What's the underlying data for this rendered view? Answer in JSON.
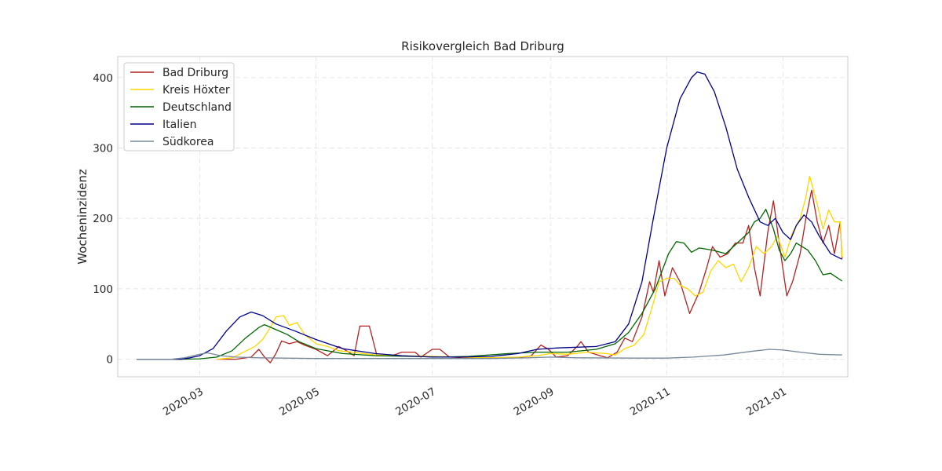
{
  "chart_data": {
    "type": "line",
    "title": "Risikovergleich Bad Driburg",
    "xlabel": "",
    "ylabel": "Wocheninzidenz",
    "x_axis": {
      "type": "date",
      "range": [
        "2020-01-18",
        "2021-02-04"
      ],
      "ticks": [
        "2020-03-01",
        "2020-05-01",
        "2020-07-01",
        "2020-09-01",
        "2020-11-01",
        "2021-01-01"
      ],
      "tick_labels": [
        "2020-03",
        "2020-05",
        "2020-07",
        "2020-09",
        "2020-11",
        "2021-01"
      ]
    },
    "y_axis": {
      "range": [
        -25,
        430
      ],
      "ticks": [
        0,
        100,
        200,
        300,
        400
      ],
      "tick_labels": [
        "0",
        "100",
        "200",
        "300",
        "400"
      ]
    },
    "grid": true,
    "legend_position": "top-left",
    "series": [
      {
        "name": "Bad Driburg",
        "color": "#b22222",
        "points": [
          [
            "2020-03-10",
            0
          ],
          [
            "2020-03-20",
            0
          ],
          [
            "2020-03-28",
            3
          ],
          [
            "2020-04-01",
            14
          ],
          [
            "2020-04-04",
            3
          ],
          [
            "2020-04-07",
            -5
          ],
          [
            "2020-04-10",
            8
          ],
          [
            "2020-04-13",
            26
          ],
          [
            "2020-04-17",
            22
          ],
          [
            "2020-04-21",
            25
          ],
          [
            "2020-04-25",
            20
          ],
          [
            "2020-05-01",
            14
          ],
          [
            "2020-05-07",
            5
          ],
          [
            "2020-05-13",
            18
          ],
          [
            "2020-05-17",
            12
          ],
          [
            "2020-05-21",
            5
          ],
          [
            "2020-05-24",
            47
          ],
          [
            "2020-05-29",
            47
          ],
          [
            "2020-06-02",
            5
          ],
          [
            "2020-06-10",
            5
          ],
          [
            "2020-06-15",
            10
          ],
          [
            "2020-06-22",
            10
          ],
          [
            "2020-06-25",
            3
          ],
          [
            "2020-07-01",
            14
          ],
          [
            "2020-07-05",
            14
          ],
          [
            "2020-07-10",
            3
          ],
          [
            "2020-07-20",
            2
          ],
          [
            "2020-08-01",
            2
          ],
          [
            "2020-08-15",
            2
          ],
          [
            "2020-08-22",
            5
          ],
          [
            "2020-08-27",
            20
          ],
          [
            "2020-08-31",
            14
          ],
          [
            "2020-09-04",
            3
          ],
          [
            "2020-09-10",
            5
          ],
          [
            "2020-09-15",
            18
          ],
          [
            "2020-09-17",
            25
          ],
          [
            "2020-09-21",
            10
          ],
          [
            "2020-09-27",
            5
          ],
          [
            "2020-10-01",
            2
          ],
          [
            "2020-10-06",
            10
          ],
          [
            "2020-10-10",
            30
          ],
          [
            "2020-10-14",
            25
          ],
          [
            "2020-10-19",
            60
          ],
          [
            "2020-10-23",
            110
          ],
          [
            "2020-10-25",
            95
          ],
          [
            "2020-10-28",
            140
          ],
          [
            "2020-10-31",
            90
          ],
          [
            "2020-11-04",
            130
          ],
          [
            "2020-11-08",
            110
          ],
          [
            "2020-11-13",
            65
          ],
          [
            "2020-11-18",
            95
          ],
          [
            "2020-11-22",
            130
          ],
          [
            "2020-11-25",
            160
          ],
          [
            "2020-11-29",
            145
          ],
          [
            "2020-12-03",
            150
          ],
          [
            "2020-12-07",
            165
          ],
          [
            "2020-12-11",
            165
          ],
          [
            "2020-12-14",
            190
          ],
          [
            "2020-12-17",
            130
          ],
          [
            "2020-12-20",
            90
          ],
          [
            "2020-12-24",
            180
          ],
          [
            "2020-12-27",
            225
          ],
          [
            "2020-12-30",
            165
          ],
          [
            "2021-01-03",
            90
          ],
          [
            "2021-01-06",
            110
          ],
          [
            "2021-01-10",
            150
          ],
          [
            "2021-01-13",
            200
          ],
          [
            "2021-01-16",
            240
          ],
          [
            "2021-01-19",
            195
          ],
          [
            "2021-01-22",
            165
          ],
          [
            "2021-01-25",
            190
          ],
          [
            "2021-01-28",
            150
          ],
          [
            "2021-01-31",
            195
          ],
          [
            "2021-02-01",
            143
          ]
        ]
      },
      {
        "name": "Kreis Höxter",
        "color": "#ffd700",
        "points": [
          [
            "2020-03-10",
            0
          ],
          [
            "2020-03-18",
            2
          ],
          [
            "2020-03-24",
            10
          ],
          [
            "2020-03-30",
            18
          ],
          [
            "2020-04-03",
            28
          ],
          [
            "2020-04-07",
            45
          ],
          [
            "2020-04-10",
            60
          ],
          [
            "2020-04-14",
            62
          ],
          [
            "2020-04-17",
            48
          ],
          [
            "2020-04-21",
            52
          ],
          [
            "2020-04-25",
            35
          ],
          [
            "2020-05-01",
            22
          ],
          [
            "2020-05-07",
            18
          ],
          [
            "2020-05-13",
            12
          ],
          [
            "2020-05-20",
            10
          ],
          [
            "2020-06-01",
            6
          ],
          [
            "2020-06-15",
            5
          ],
          [
            "2020-07-01",
            4
          ],
          [
            "2020-07-15",
            3
          ],
          [
            "2020-08-01",
            2
          ],
          [
            "2020-08-15",
            3
          ],
          [
            "2020-08-25",
            5
          ],
          [
            "2020-09-01",
            8
          ],
          [
            "2020-09-10",
            7
          ],
          [
            "2020-09-20",
            10
          ],
          [
            "2020-09-30",
            8
          ],
          [
            "2020-10-05",
            6
          ],
          [
            "2020-10-10",
            15
          ],
          [
            "2020-10-15",
            20
          ],
          [
            "2020-10-20",
            35
          ],
          [
            "2020-10-25",
            80
          ],
          [
            "2020-10-28",
            110
          ],
          [
            "2020-11-01",
            115
          ],
          [
            "2020-11-05",
            115
          ],
          [
            "2020-11-08",
            105
          ],
          [
            "2020-11-12",
            100
          ],
          [
            "2020-11-16",
            90
          ],
          [
            "2020-11-20",
            95
          ],
          [
            "2020-11-24",
            125
          ],
          [
            "2020-11-28",
            140
          ],
          [
            "2020-12-02",
            130
          ],
          [
            "2020-12-06",
            135
          ],
          [
            "2020-12-10",
            110
          ],
          [
            "2020-12-14",
            130
          ],
          [
            "2020-12-18",
            160
          ],
          [
            "2020-12-22",
            150
          ],
          [
            "2020-12-26",
            160
          ],
          [
            "2020-12-29",
            175
          ],
          [
            "2021-01-02",
            145
          ],
          [
            "2021-01-06",
            180
          ],
          [
            "2021-01-10",
            200
          ],
          [
            "2021-01-13",
            230
          ],
          [
            "2021-01-15",
            260
          ],
          [
            "2021-01-19",
            220
          ],
          [
            "2021-01-22",
            185
          ],
          [
            "2021-01-25",
            212
          ],
          [
            "2021-01-28",
            195
          ],
          [
            "2021-01-31",
            195
          ],
          [
            "2021-02-01",
            145
          ]
        ]
      },
      {
        "name": "Deutschland",
        "color": "#006400",
        "points": [
          [
            "2020-01-28",
            0
          ],
          [
            "2020-02-20",
            0
          ],
          [
            "2020-03-01",
            0.5
          ],
          [
            "2020-03-10",
            3
          ],
          [
            "2020-03-18",
            12
          ],
          [
            "2020-03-25",
            30
          ],
          [
            "2020-04-01",
            45
          ],
          [
            "2020-04-04",
            49
          ],
          [
            "2020-04-10",
            42
          ],
          [
            "2020-04-16",
            35
          ],
          [
            "2020-04-22",
            25
          ],
          [
            "2020-05-01",
            15
          ],
          [
            "2020-05-15",
            8
          ],
          [
            "2020-06-01",
            5
          ],
          [
            "2020-06-20",
            4
          ],
          [
            "2020-07-05",
            3
          ],
          [
            "2020-07-20",
            4
          ],
          [
            "2020-08-10",
            8
          ],
          [
            "2020-08-25",
            10
          ],
          [
            "2020-09-10",
            10
          ],
          [
            "2020-09-25",
            14
          ],
          [
            "2020-10-05",
            22
          ],
          [
            "2020-10-12",
            38
          ],
          [
            "2020-10-19",
            65
          ],
          [
            "2020-10-26",
            100
          ],
          [
            "2020-11-02",
            150
          ],
          [
            "2020-11-06",
            167
          ],
          [
            "2020-11-10",
            165
          ],
          [
            "2020-11-14",
            152
          ],
          [
            "2020-11-18",
            158
          ],
          [
            "2020-11-25",
            155
          ],
          [
            "2020-12-02",
            150
          ],
          [
            "2020-12-06",
            160
          ],
          [
            "2020-12-10",
            170
          ],
          [
            "2020-12-14",
            180
          ],
          [
            "2020-12-17",
            195
          ],
          [
            "2020-12-20",
            200
          ],
          [
            "2020-12-23",
            213
          ],
          [
            "2020-12-27",
            185
          ],
          [
            "2020-12-30",
            155
          ],
          [
            "2021-01-02",
            140
          ],
          [
            "2021-01-05",
            150
          ],
          [
            "2021-01-08",
            165
          ],
          [
            "2021-01-11",
            160
          ],
          [
            "2021-01-14",
            155
          ],
          [
            "2021-01-18",
            140
          ],
          [
            "2021-01-22",
            120
          ],
          [
            "2021-01-26",
            122
          ],
          [
            "2021-02-01",
            111
          ]
        ]
      },
      {
        "name": "Italien",
        "color": "#00008b",
        "points": [
          [
            "2020-01-28",
            0
          ],
          [
            "2020-02-20",
            0
          ],
          [
            "2020-02-25",
            2
          ],
          [
            "2020-03-01",
            5
          ],
          [
            "2020-03-08",
            15
          ],
          [
            "2020-03-15",
            40
          ],
          [
            "2020-03-22",
            60
          ],
          [
            "2020-03-28",
            67
          ],
          [
            "2020-04-03",
            62
          ],
          [
            "2020-04-10",
            50
          ],
          [
            "2020-04-20",
            40
          ],
          [
            "2020-05-01",
            28
          ],
          [
            "2020-05-15",
            15
          ],
          [
            "2020-06-01",
            8
          ],
          [
            "2020-06-15",
            5
          ],
          [
            "2020-07-01",
            3
          ],
          [
            "2020-07-15",
            3
          ],
          [
            "2020-08-01",
            4
          ],
          [
            "2020-08-15",
            8
          ],
          [
            "2020-08-25",
            14
          ],
          [
            "2020-09-05",
            16
          ],
          [
            "2020-09-15",
            17
          ],
          [
            "2020-09-25",
            18
          ],
          [
            "2020-10-05",
            25
          ],
          [
            "2020-10-12",
            50
          ],
          [
            "2020-10-19",
            110
          ],
          [
            "2020-10-25",
            200
          ],
          [
            "2020-11-01",
            300
          ],
          [
            "2020-11-08",
            370
          ],
          [
            "2020-11-14",
            400
          ],
          [
            "2020-11-17",
            408
          ],
          [
            "2020-11-21",
            405
          ],
          [
            "2020-11-26",
            380
          ],
          [
            "2020-12-02",
            330
          ],
          [
            "2020-12-08",
            270
          ],
          [
            "2020-12-14",
            230
          ],
          [
            "2020-12-20",
            195
          ],
          [
            "2020-12-24",
            190
          ],
          [
            "2020-12-28",
            200
          ],
          [
            "2021-01-01",
            180
          ],
          [
            "2021-01-05",
            170
          ],
          [
            "2021-01-08",
            190
          ],
          [
            "2021-01-12",
            205
          ],
          [
            "2021-01-16",
            195
          ],
          [
            "2021-01-20",
            175
          ],
          [
            "2021-01-26",
            150
          ],
          [
            "2021-02-01",
            142
          ]
        ]
      },
      {
        "name": "Südkorea",
        "color": "#778899",
        "points": [
          [
            "2020-01-28",
            0
          ],
          [
            "2020-02-15",
            0
          ],
          [
            "2020-02-22",
            2
          ],
          [
            "2020-03-01",
            7
          ],
          [
            "2020-03-05",
            9
          ],
          [
            "2020-03-12",
            5
          ],
          [
            "2020-03-20",
            3
          ],
          [
            "2020-04-01",
            2
          ],
          [
            "2020-05-01",
            1
          ],
          [
            "2020-06-01",
            1
          ],
          [
            "2020-07-01",
            1
          ],
          [
            "2020-08-01",
            1
          ],
          [
            "2020-08-20",
            2
          ],
          [
            "2020-09-01",
            3
          ],
          [
            "2020-09-15",
            2
          ],
          [
            "2020-10-15",
            1.5
          ],
          [
            "2020-11-01",
            1.5
          ],
          [
            "2020-11-15",
            3
          ],
          [
            "2020-12-01",
            6
          ],
          [
            "2020-12-15",
            11
          ],
          [
            "2020-12-25",
            14
          ],
          [
            "2021-01-01",
            13
          ],
          [
            "2021-01-10",
            10
          ],
          [
            "2021-01-20",
            7
          ],
          [
            "2021-02-01",
            6
          ]
        ]
      }
    ]
  }
}
